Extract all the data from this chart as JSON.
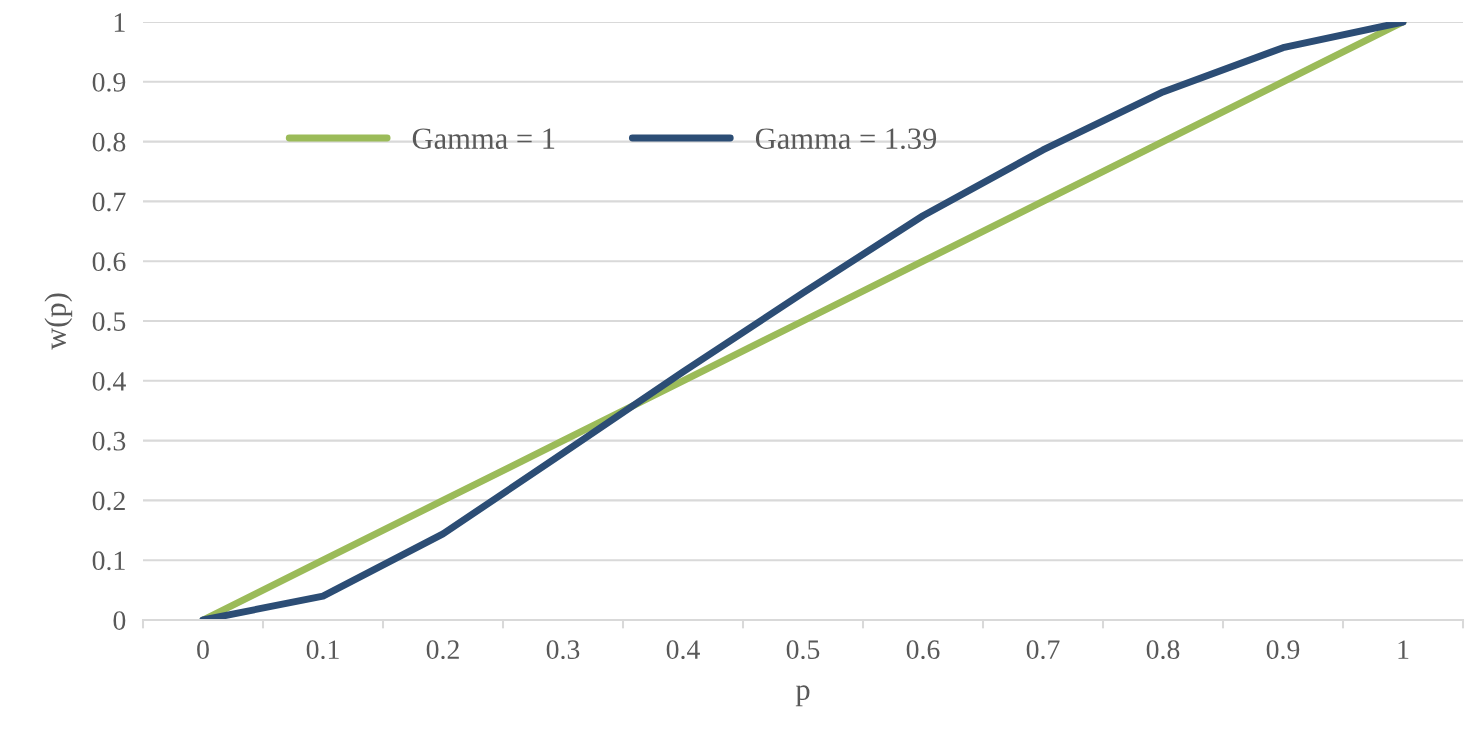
{
  "chart_data": {
    "type": "line",
    "xlabel": "p",
    "ylabel": "w(p)",
    "categories": [
      "0",
      "0.1",
      "0.2",
      "0.3",
      "0.4",
      "0.5",
      "0.6",
      "0.7",
      "0.8",
      "0.9",
      "1"
    ],
    "series": [
      {
        "name": "Gamma = 1",
        "color": "#9bbb59",
        "values": [
          0,
          0.1,
          0.2,
          0.3,
          0.4,
          0.5,
          0.6,
          0.7,
          0.8,
          0.9,
          1
        ]
      },
      {
        "name": "Gamma = 1.39",
        "color": "#2c4d75",
        "values": [
          0,
          0.04,
          0.144,
          0.279,
          0.415,
          0.547,
          0.676,
          0.786,
          0.883,
          0.957,
          1
        ]
      }
    ],
    "ylim": [
      0,
      1
    ],
    "yticks": [
      0,
      0.1,
      0.2,
      0.3,
      0.4,
      0.5,
      0.6,
      0.7,
      0.8,
      0.9,
      1
    ],
    "grid": "y",
    "legend": "top left",
    "marker": "none",
    "line_style": "solid"
  }
}
